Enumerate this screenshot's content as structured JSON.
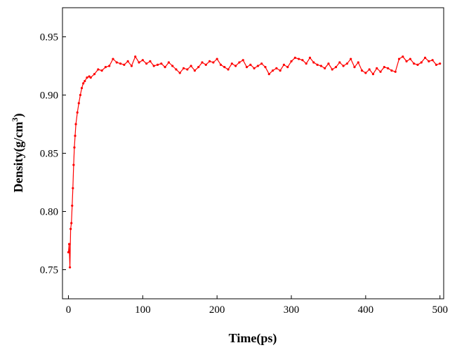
{
  "chart_data": {
    "type": "line",
    "title": "",
    "xlabel": "Time(ps)",
    "ylabel_main": "Density(g/cm",
    "ylabel_sup": "3",
    "ylabel_close": ")",
    "xlim": [
      -8,
      505
    ],
    "ylim": [
      0.725,
      0.975
    ],
    "xticks": [
      0,
      100,
      200,
      300,
      400,
      500
    ],
    "yticks": [
      0.75,
      0.8,
      0.85,
      0.9,
      0.95
    ],
    "ytick_labels": [
      "0.75",
      "0.80",
      "0.85",
      "0.90",
      "0.95"
    ],
    "xtick_labels": [
      "0",
      "100",
      "200",
      "300",
      "400",
      "500"
    ],
    "grid": false,
    "legend": "none",
    "series_color": "#ff0000",
    "series": [
      {
        "x": [
          0,
          1,
          2,
          3,
          4,
          5,
          6,
          7,
          8,
          9,
          10,
          12,
          14,
          16,
          18,
          20,
          22,
          25,
          28,
          30,
          35,
          40,
          45,
          50,
          55,
          60,
          65,
          70,
          75,
          80,
          85,
          90,
          95,
          100,
          105,
          110,
          115,
          120,
          125,
          130,
          135,
          140,
          145,
          150,
          155,
          160,
          165,
          170,
          175,
          180,
          185,
          190,
          195,
          200,
          205,
          210,
          215,
          220,
          225,
          230,
          235,
          240,
          245,
          250,
          255,
          260,
          265,
          270,
          275,
          280,
          285,
          290,
          295,
          300,
          305,
          310,
          315,
          320,
          325,
          330,
          335,
          340,
          345,
          350,
          355,
          360,
          365,
          370,
          375,
          380,
          385,
          390,
          395,
          400,
          405,
          410,
          415,
          420,
          425,
          430,
          435,
          440,
          445,
          450,
          455,
          460,
          465,
          470,
          475,
          480,
          485,
          490,
          495,
          500
        ],
        "values": [
          0.765,
          0.772,
          0.752,
          0.785,
          0.79,
          0.805,
          0.82,
          0.84,
          0.855,
          0.865,
          0.875,
          0.885,
          0.893,
          0.9,
          0.906,
          0.91,
          0.912,
          0.915,
          0.916,
          0.915,
          0.918,
          0.922,
          0.921,
          0.924,
          0.925,
          0.931,
          0.928,
          0.927,
          0.926,
          0.929,
          0.925,
          0.933,
          0.928,
          0.93,
          0.927,
          0.929,
          0.925,
          0.926,
          0.927,
          0.924,
          0.928,
          0.925,
          0.922,
          0.919,
          0.923,
          0.922,
          0.925,
          0.921,
          0.924,
          0.928,
          0.926,
          0.929,
          0.928,
          0.931,
          0.926,
          0.924,
          0.922,
          0.927,
          0.925,
          0.928,
          0.93,
          0.924,
          0.926,
          0.923,
          0.925,
          0.927,
          0.924,
          0.918,
          0.921,
          0.923,
          0.921,
          0.926,
          0.924,
          0.929,
          0.932,
          0.931,
          0.93,
          0.927,
          0.932,
          0.928,
          0.926,
          0.925,
          0.923,
          0.927,
          0.922,
          0.924,
          0.928,
          0.925,
          0.927,
          0.931,
          0.924,
          0.928,
          0.921,
          0.919,
          0.922,
          0.918,
          0.923,
          0.92,
          0.924,
          0.923,
          0.921,
          0.92,
          0.931,
          0.933,
          0.929,
          0.931,
          0.927,
          0.926,
          0.928,
          0.932,
          0.929,
          0.93,
          0.926,
          0.927
        ]
      }
    ]
  }
}
